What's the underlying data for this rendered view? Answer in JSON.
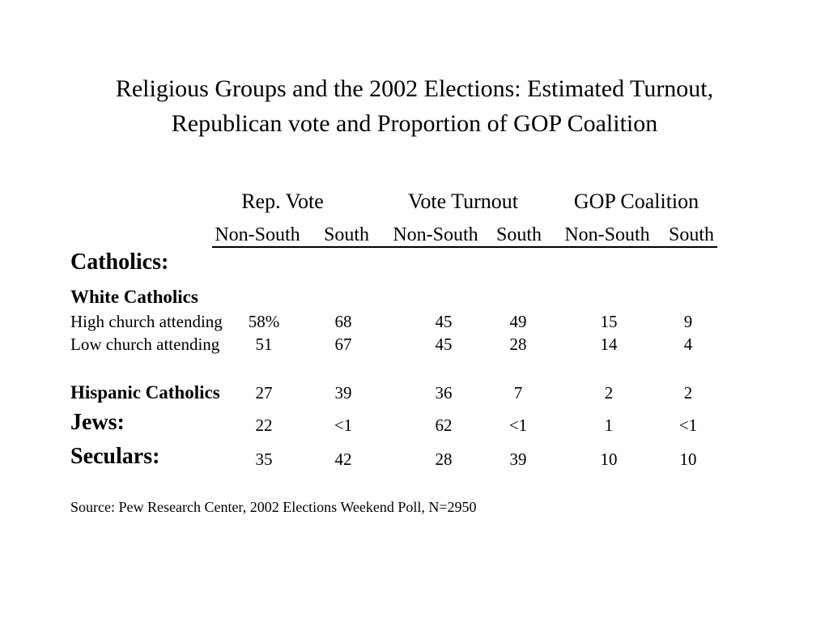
{
  "slide": {
    "title": {
      "line1": "Religious Groups and the 2002 Elections: Estimated Turnout,",
      "line2": "Republican vote and Proportion of GOP Coalition"
    },
    "source": "Source: Pew Research Center, 2002 Elections Weekend Poll, N=2950"
  },
  "table": {
    "group_headers": [
      {
        "label": "Rep. Vote"
      },
      {
        "label": "Vote Turnout"
      },
      {
        "label": "GOP Coalition"
      }
    ],
    "sub_headers": [
      "Non-South",
      "South",
      "Non-South",
      "South",
      "Non-South",
      "South"
    ],
    "rows": [
      {
        "label": "Catholics:",
        "style": "section",
        "values": []
      },
      {
        "label": "White Catholics",
        "style": "subsection",
        "values": []
      },
      {
        "label": "High church attending",
        "style": "data",
        "values": [
          "58%",
          "68",
          "45",
          "49",
          "15",
          "9"
        ]
      },
      {
        "label": "Low church attending",
        "style": "data",
        "values": [
          "51",
          "67",
          "45",
          "28",
          "14",
          "4"
        ]
      },
      {
        "label": "Hispanic Catholics",
        "style": "subsection",
        "values": [
          "27",
          "39",
          "36",
          "7",
          "2",
          "2"
        ]
      },
      {
        "label": "Jews:",
        "style": "section",
        "values": [
          "22",
          "<1",
          "62",
          "<1",
          "1",
          "<1"
        ]
      },
      {
        "label": "Seculars:",
        "style": "section",
        "values": [
          "35",
          "42",
          "28",
          "39",
          "10",
          "10"
        ]
      }
    ]
  }
}
